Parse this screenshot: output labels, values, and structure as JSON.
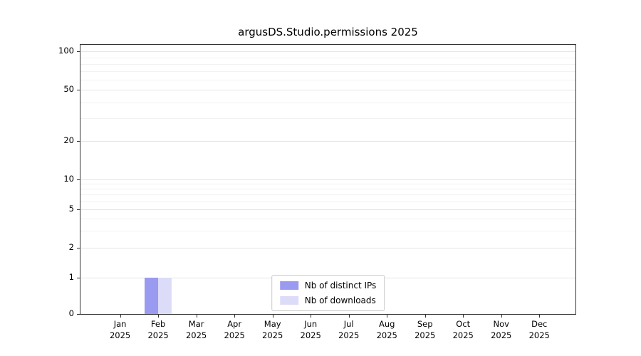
{
  "chart_data": {
    "type": "bar",
    "title": "argusDS.Studio.permissions 2025",
    "categories": [
      "Jan",
      "Feb",
      "Mar",
      "Apr",
      "May",
      "Jun",
      "Jul",
      "Aug",
      "Sep",
      "Oct",
      "Nov",
      "Dec"
    ],
    "tick_year": "2025",
    "series": [
      {
        "name": "Nb of distinct IPs",
        "color": "#9a9af0",
        "values": [
          0,
          1,
          0,
          0,
          0,
          0,
          0,
          0,
          0,
          0,
          0,
          0
        ]
      },
      {
        "name": "Nb of downloads",
        "color": "#dcdcf9",
        "values": [
          0,
          1,
          0,
          0,
          0,
          0,
          0,
          0,
          0,
          0,
          0,
          0
        ]
      }
    ],
    "y_ticks": [
      0,
      1,
      2,
      5,
      10,
      20,
      50,
      100
    ],
    "minor_grid_values": [
      3,
      4,
      6,
      7,
      8,
      9,
      30,
      40,
      60,
      70,
      80,
      90
    ],
    "yscale": "symlog",
    "ylim": [
      0,
      113
    ],
    "xlabel": "",
    "ylabel": "",
    "grid": "horizontal",
    "legend_position": "lower center"
  }
}
